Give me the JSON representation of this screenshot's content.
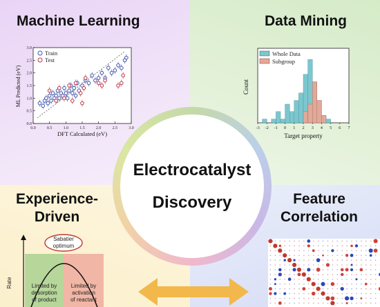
{
  "center": {
    "line1": "Electrocatalyst",
    "line2": "Discovery"
  },
  "quadrants": {
    "ml": {
      "title": "Machine Learning",
      "color": "#e9d4f6"
    },
    "dm": {
      "title": "Data Mining",
      "color": "#d5ebc8"
    },
    "ex": {
      "title_line1": "Experience-",
      "title_line2": "Driven",
      "color": "#fbf0cc"
    },
    "fc": {
      "title_line1": "Feature",
      "title_line2": "Correlation",
      "color": "#d6dcf6"
    }
  },
  "ml_plot": {
    "xlabel": "DFT Calculated (eV)",
    "ylabel": "ML Predicted (eV)",
    "legend": [
      "Train",
      "Test"
    ],
    "xticks": [
      "0.0",
      "0.5",
      "1.0",
      "1.5",
      "2.0",
      "2.5",
      "3.0"
    ],
    "yticks": [
      "0.0",
      "0.5",
      "1.0",
      "1.5",
      "2.0",
      "2.5",
      "3.0"
    ],
    "colors": {
      "train": "#3f54a8",
      "test": "#b8364a"
    }
  },
  "dm_plot": {
    "xlabel": "Target property",
    "ylabel": "Count",
    "legend": [
      "Whole Data",
      "Subgroup"
    ],
    "xticks": [
      "-3",
      "-2",
      "-1",
      "0",
      "1",
      "2",
      "3",
      "4",
      "5",
      "6",
      "7"
    ],
    "colors": {
      "whole": "#7cc7cf",
      "sub": "#eba593"
    }
  },
  "ex_plot": {
    "ylabel": "Rate",
    "optimum_line1": "Sabatier",
    "optimum_line2": "optimum",
    "left_line1": "Limited by",
    "left_line2": "desorption",
    "left_line3": "of product",
    "right_line1": "Limited by",
    "right_line2": "activation",
    "right_line3": "of reactant"
  },
  "chart_data": [
    {
      "type": "scatter",
      "xlabel": "DFT Calculated (eV)",
      "ylabel": "ML Predicted (eV)",
      "xlim": [
        0,
        3.0
      ],
      "ylim": [
        0,
        3.0
      ],
      "series": [
        {
          "name": "Train",
          "points": [
            [
              0.2,
              0.8
            ],
            [
              0.3,
              0.7
            ],
            [
              0.35,
              0.9
            ],
            [
              0.4,
              1.0
            ],
            [
              0.45,
              0.8
            ],
            [
              0.5,
              1.1
            ],
            [
              0.55,
              0.9
            ],
            [
              0.6,
              1.2
            ],
            [
              0.65,
              1.0
            ],
            [
              0.7,
              1.1
            ],
            [
              0.75,
              1.3
            ],
            [
              0.8,
              1.0
            ],
            [
              0.85,
              1.2
            ],
            [
              0.9,
              1.1
            ],
            [
              0.95,
              1.4
            ],
            [
              1.0,
              1.2
            ],
            [
              1.05,
              1.0
            ],
            [
              1.1,
              1.3
            ],
            [
              1.15,
              1.5
            ],
            [
              1.2,
              1.2
            ],
            [
              1.25,
              1.4
            ],
            [
              1.3,
              1.1
            ],
            [
              1.35,
              1.6
            ],
            [
              1.4,
              1.3
            ],
            [
              1.5,
              1.5
            ],
            [
              1.6,
              1.7
            ],
            [
              1.7,
              1.6
            ],
            [
              1.8,
              1.9
            ],
            [
              1.9,
              1.7
            ],
            [
              2.0,
              1.8
            ],
            [
              2.1,
              2.0
            ],
            [
              2.2,
              1.8
            ],
            [
              2.3,
              2.2
            ],
            [
              2.4,
              2.0
            ],
            [
              2.5,
              2.1
            ],
            [
              2.6,
              2.3
            ],
            [
              2.7,
              2.2
            ],
            [
              2.8,
              2.5
            ],
            [
              2.85,
              2.6
            ]
          ]
        },
        {
          "name": "Test",
          "points": [
            [
              0.5,
              1.3
            ],
            [
              0.7,
              0.9
            ],
            [
              0.8,
              1.4
            ],
            [
              0.95,
              1.0
            ],
            [
              1.1,
              1.5
            ],
            [
              1.2,
              0.9
            ],
            [
              1.3,
              1.6
            ],
            [
              1.45,
              1.2
            ],
            [
              1.5,
              0.8
            ],
            [
              1.55,
              1.4
            ],
            [
              1.6,
              1.8
            ],
            [
              2.0,
              1.6
            ],
            [
              2.1,
              1.5
            ],
            [
              2.2,
              1.7
            ],
            [
              2.6,
              1.5
            ],
            [
              2.7,
              1.6
            ],
            [
              2.75,
              1.9
            ]
          ]
        }
      ]
    },
    {
      "type": "bar",
      "xlabel": "Target property",
      "ylabel": "Count",
      "bin_starts": [
        -2.5,
        -2.0,
        -1.5,
        -1.0,
        -0.5,
        0.0,
        0.5,
        1.0,
        1.5,
        2.0,
        2.5,
        3.0,
        3.5,
        4.0,
        4.5,
        5.0
      ],
      "bin_width": 0.5,
      "series": [
        {
          "name": "Whole Data",
          "values": [
            1,
            0,
            1,
            3,
            1,
            5,
            3,
            6,
            8,
            13,
            17,
            11,
            6,
            2,
            1,
            0
          ]
        },
        {
          "name": "Subgroup",
          "values": [
            0,
            0,
            0,
            0,
            0,
            0,
            0,
            0,
            0,
            3,
            5,
            11,
            6,
            2,
            0,
            0
          ]
        }
      ],
      "ylim": [
        0,
        20
      ]
    },
    {
      "type": "heatmap",
      "size": 24,
      "style": "correlation-dots"
    }
  ]
}
